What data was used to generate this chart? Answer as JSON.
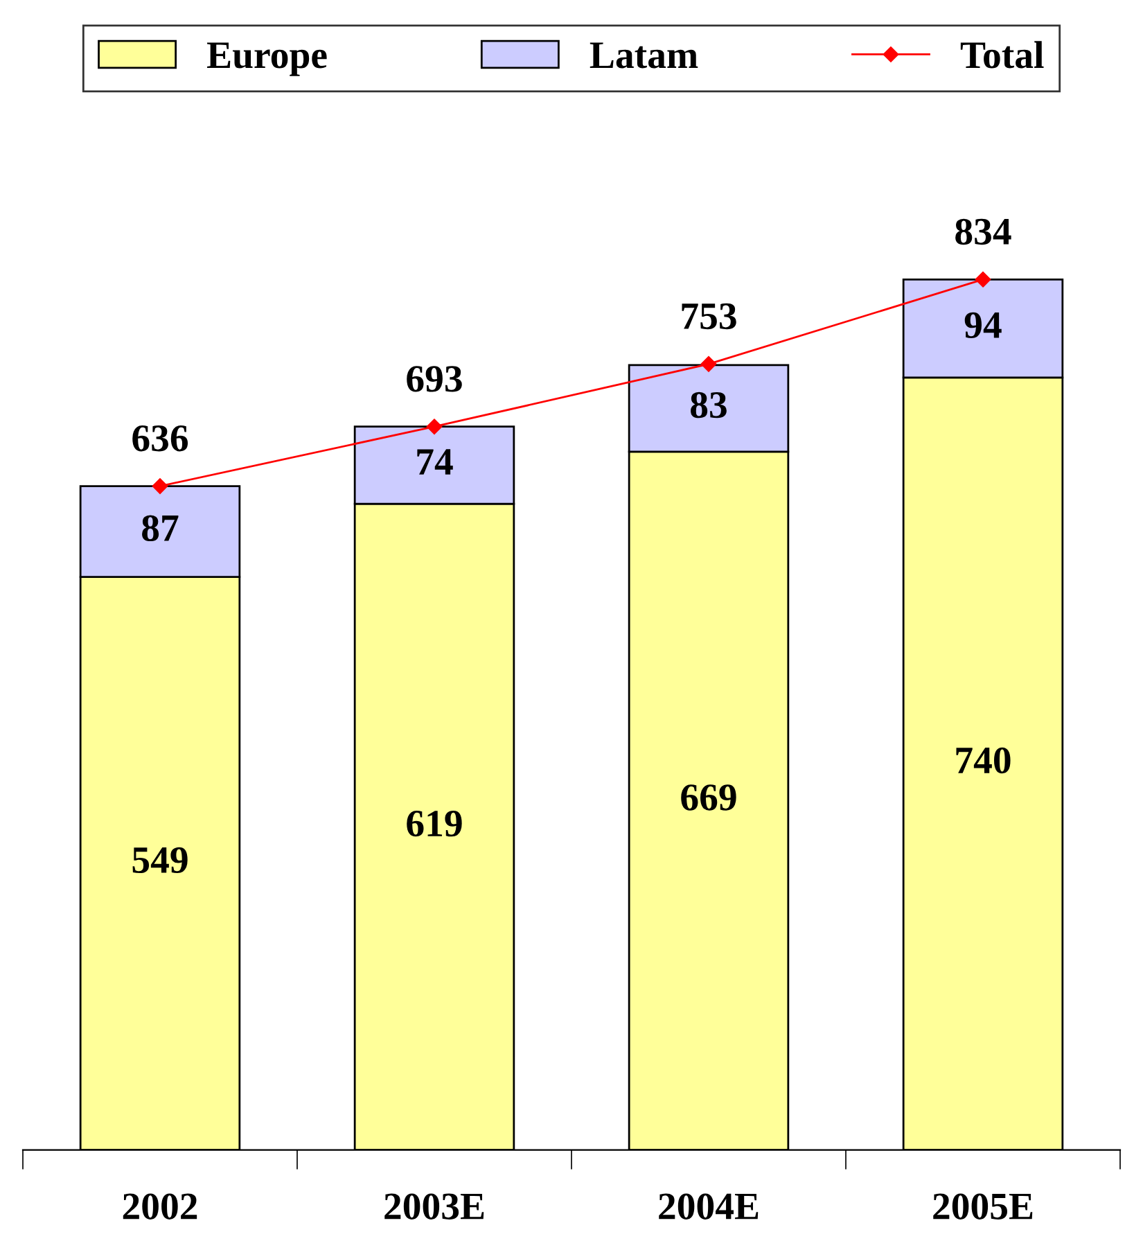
{
  "chart_data": {
    "type": "bar",
    "stacked": true,
    "categories": [
      "2002",
      "2003E",
      "2004E",
      "2005E"
    ],
    "series": [
      {
        "name": "Europe",
        "color": "#ffff99",
        "values": [
          549,
          619,
          669,
          740
        ]
      },
      {
        "name": "Latam",
        "color": "#ccccff",
        "values": [
          87,
          74,
          83,
          94
        ]
      },
      {
        "name": "Total",
        "type": "line",
        "color": "#ff0000",
        "marker": "diamond",
        "values": [
          636,
          693,
          753,
          834
        ]
      }
    ],
    "data_labels": true,
    "legend": "top",
    "grid": false,
    "tick_labels": "x"
  }
}
